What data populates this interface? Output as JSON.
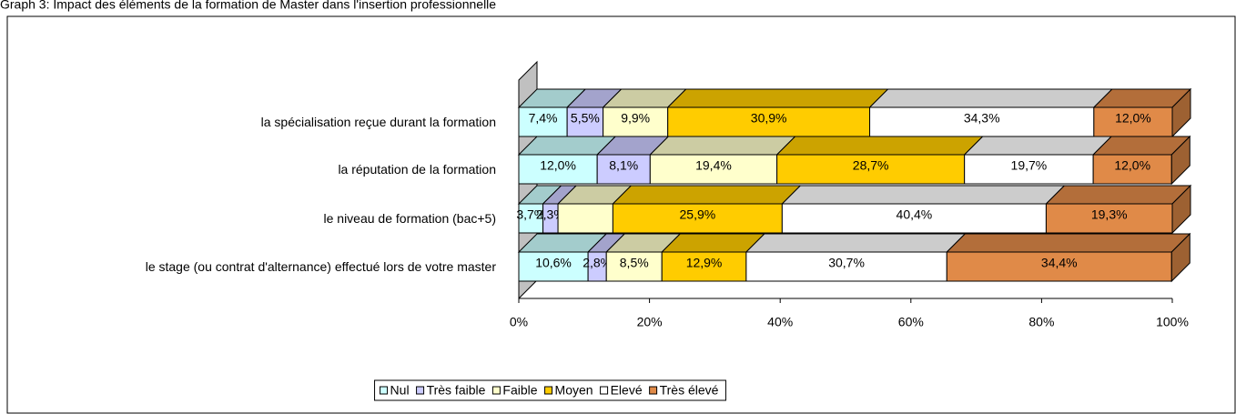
{
  "chart_data": {
    "type": "stacked_bar_horizontal",
    "title": "Graph 3: Impact des éléments de la formation de Master dans l'insertion professionnelle",
    "categories": [
      "la spécialisation reçue durant la formation",
      "la réputation de la formation",
      "le niveau de formation (bac+5)",
      "le stage (ou contrat d'alternance) effectué lors de votre master"
    ],
    "series": [
      {
        "name": "Nul",
        "color": "#ccffff",
        "values": [
          7.4,
          12.0,
          3.7,
          10.6
        ],
        "value_labels": [
          "7,4%",
          "12,0%",
          "3,7%",
          "10,6%"
        ]
      },
      {
        "name": "Très faible",
        "color": "#ccccff",
        "values": [
          5.5,
          8.1,
          2.3,
          2.8
        ],
        "value_labels": [
          "5,5%",
          "8,1%",
          "2,3%",
          "2,8%"
        ]
      },
      {
        "name": "Faible",
        "color": "#ffffcc",
        "values": [
          9.9,
          19.4,
          8.4,
          8.5
        ],
        "value_labels": [
          "9,9%",
          "19,4%",
          null,
          "8,5%"
        ]
      },
      {
        "name": "Moyen",
        "color": "#ffcc00",
        "values": [
          30.9,
          28.7,
          25.9,
          12.9
        ],
        "value_labels": [
          "30,9%",
          "28,7%",
          "25,9%",
          "12,9%"
        ]
      },
      {
        "name": "Elevé",
        "color": "#ffffff",
        "values": [
          34.3,
          19.7,
          40.4,
          30.7
        ],
        "value_labels": [
          "34,3%",
          "19,7%",
          "40,4%",
          "30,7%"
        ]
      },
      {
        "name": "Très élevé",
        "color": "#e08a48",
        "values": [
          12.0,
          12.0,
          19.3,
          34.4
        ],
        "value_labels": [
          "12,0%",
          "12,0%",
          "19,3%",
          "34,4%"
        ]
      }
    ],
    "xlim": [
      0,
      100
    ],
    "xticks": [
      {
        "value": 0,
        "label": "0%"
      },
      {
        "value": 20,
        "label": "20%"
      },
      {
        "value": 40,
        "label": "40%"
      },
      {
        "value": 60,
        "label": "60%"
      },
      {
        "value": 80,
        "label": "80%"
      },
      {
        "value": 100,
        "label": "100%"
      }
    ],
    "legend": "bottom"
  }
}
